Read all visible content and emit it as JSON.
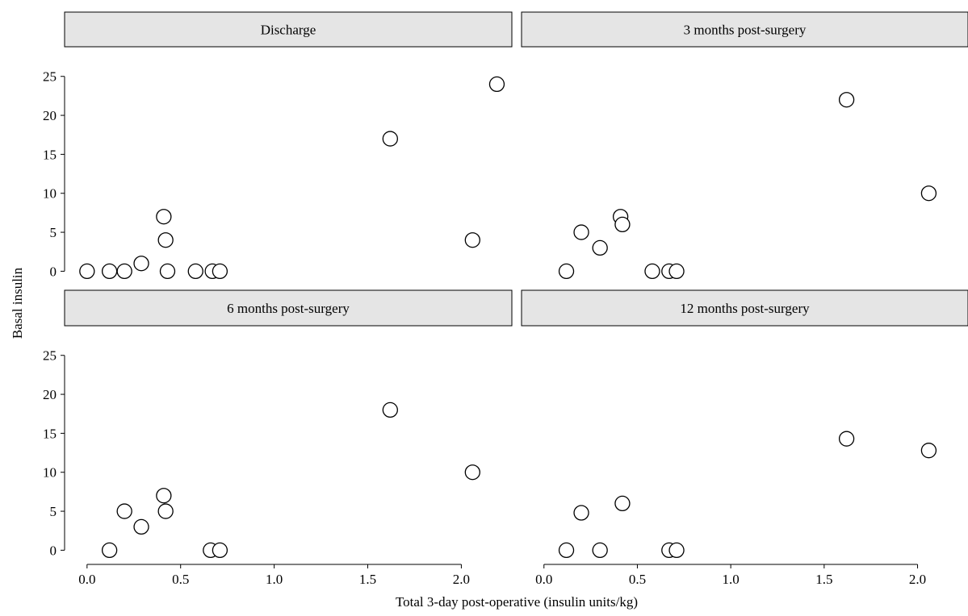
{
  "chart_data": {
    "type": "scatter",
    "xlabel": "Total 3-day post-operative (insulin units/kg)",
    "ylabel": "Basal insulin",
    "xlim": [
      -0.12,
      2.27
    ],
    "ylim": [
      -1.2,
      28.8
    ],
    "x_ticks": [
      0.0,
      0.5,
      1.0,
      1.5,
      2.0
    ],
    "x_tick_labels": [
      "0.0",
      "0.5",
      "1.0",
      "1.5",
      "2.0"
    ],
    "y_ticks": [
      0,
      5,
      10,
      15,
      20,
      25
    ],
    "y_tick_labels": [
      "0",
      "5",
      "10",
      "15",
      "20",
      "25"
    ],
    "grid": false,
    "panels": [
      {
        "title": "Discharge",
        "points": [
          {
            "x": 0.0,
            "y": 0
          },
          {
            "x": 0.12,
            "y": 0
          },
          {
            "x": 0.2,
            "y": 0
          },
          {
            "x": 0.29,
            "y": 1
          },
          {
            "x": 0.41,
            "y": 7
          },
          {
            "x": 0.42,
            "y": 4
          },
          {
            "x": 0.43,
            "y": 0
          },
          {
            "x": 0.58,
            "y": 0
          },
          {
            "x": 0.67,
            "y": 0
          },
          {
            "x": 0.71,
            "y": 0
          },
          {
            "x": 1.62,
            "y": 17
          },
          {
            "x": 2.06,
            "y": 4
          },
          {
            "x": 2.19,
            "y": 24
          }
        ]
      },
      {
        "title": "3 months post-surgery",
        "points": [
          {
            "x": 0.12,
            "y": 0
          },
          {
            "x": 0.2,
            "y": 5
          },
          {
            "x": 0.3,
            "y": 3
          },
          {
            "x": 0.41,
            "y": 7
          },
          {
            "x": 0.42,
            "y": 6
          },
          {
            "x": 0.58,
            "y": 0
          },
          {
            "x": 0.67,
            "y": 0
          },
          {
            "x": 0.71,
            "y": 0
          },
          {
            "x": 1.62,
            "y": 22
          },
          {
            "x": 2.06,
            "y": 10
          }
        ]
      },
      {
        "title": "6 months post-surgery",
        "points": [
          {
            "x": 0.12,
            "y": 0
          },
          {
            "x": 0.2,
            "y": 5
          },
          {
            "x": 0.29,
            "y": 3
          },
          {
            "x": 0.41,
            "y": 7
          },
          {
            "x": 0.42,
            "y": 5
          },
          {
            "x": 0.66,
            "y": 0
          },
          {
            "x": 0.71,
            "y": 0
          },
          {
            "x": 1.62,
            "y": 18
          },
          {
            "x": 2.06,
            "y": 10
          }
        ]
      },
      {
        "title": "12 months post-surgery",
        "points": [
          {
            "x": 0.12,
            "y": 0
          },
          {
            "x": 0.2,
            "y": 4.8
          },
          {
            "x": 0.3,
            "y": 0
          },
          {
            "x": 0.42,
            "y": 6
          },
          {
            "x": 0.67,
            "y": 0
          },
          {
            "x": 0.71,
            "y": 0
          },
          {
            "x": 1.62,
            "y": 14.3
          },
          {
            "x": 2.06,
            "y": 12.8
          }
        ]
      }
    ]
  },
  "colors": {
    "strip_fill": "#e5e5e5",
    "marker_fill": "#ffffff",
    "stroke": "#000000"
  }
}
